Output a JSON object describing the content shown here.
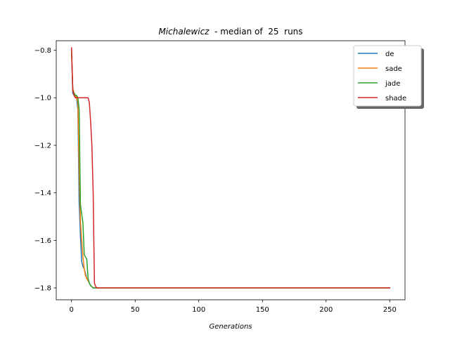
{
  "chart_data": {
    "type": "line",
    "title_italic": "Michalewicz",
    "title_rest": "  - median of  25  runs",
    "xlabel": "Generations",
    "ylabel": "",
    "xlim": [
      -12,
      262
    ],
    "ylim": [
      -1.85,
      -0.76
    ],
    "xticks": [
      0,
      50,
      100,
      150,
      200,
      250
    ],
    "yticks": [
      -0.8,
      -1.0,
      -1.2,
      -1.4,
      -1.6,
      -1.8
    ],
    "ytick_labels": [
      "−0.8",
      "−1.0",
      "−1.2",
      "−1.4",
      "−1.6",
      "−1.8"
    ],
    "legend_position": "top-right",
    "grid": false,
    "series": [
      {
        "name": "de",
        "color": "#1f77b4",
        "points": [
          [
            0,
            -0.8
          ],
          [
            1,
            -0.98
          ],
          [
            2,
            -0.99
          ],
          [
            3,
            -0.99
          ],
          [
            4,
            -1.0
          ],
          [
            5,
            -1.05
          ],
          [
            6,
            -1.44
          ],
          [
            7,
            -1.58
          ],
          [
            8,
            -1.69
          ],
          [
            9,
            -1.71
          ],
          [
            10,
            -1.72
          ],
          [
            11,
            -1.74
          ],
          [
            12,
            -1.76
          ],
          [
            13,
            -1.77
          ],
          [
            14,
            -1.78
          ],
          [
            15,
            -1.79
          ],
          [
            16,
            -1.795
          ],
          [
            17,
            -1.8
          ],
          [
            20,
            -1.8
          ],
          [
            30,
            -1.8
          ],
          [
            250,
            -1.8
          ]
        ]
      },
      {
        "name": "sade",
        "color": "#ff7f0e",
        "points": [
          [
            0,
            -0.8
          ],
          [
            1,
            -0.96
          ],
          [
            2,
            -0.98
          ],
          [
            3,
            -0.99
          ],
          [
            4,
            -1.0
          ],
          [
            5,
            -1.02
          ],
          [
            6,
            -1.3
          ],
          [
            7,
            -1.52
          ],
          [
            8,
            -1.6
          ],
          [
            9,
            -1.67
          ],
          [
            10,
            -1.72
          ],
          [
            11,
            -1.75
          ],
          [
            12,
            -1.76
          ],
          [
            13,
            -1.77
          ],
          [
            14,
            -1.78
          ],
          [
            15,
            -1.79
          ],
          [
            16,
            -1.795
          ],
          [
            17,
            -1.8
          ],
          [
            20,
            -1.8
          ],
          [
            30,
            -1.8
          ],
          [
            250,
            -1.8
          ]
        ]
      },
      {
        "name": "jade",
        "color": "#2ca02c",
        "points": [
          [
            0,
            -0.8
          ],
          [
            1,
            -0.97
          ],
          [
            2,
            -0.98
          ],
          [
            3,
            -0.99
          ],
          [
            4,
            -0.99
          ],
          [
            5,
            -1.0
          ],
          [
            6,
            -1.05
          ],
          [
            7,
            -1.45
          ],
          [
            8,
            -1.49
          ],
          [
            9,
            -1.53
          ],
          [
            10,
            -1.66
          ],
          [
            11,
            -1.67
          ],
          [
            12,
            -1.68
          ],
          [
            13,
            -1.76
          ],
          [
            14,
            -1.78
          ],
          [
            15,
            -1.79
          ],
          [
            16,
            -1.795
          ],
          [
            17,
            -1.8
          ],
          [
            20,
            -1.8
          ],
          [
            30,
            -1.8
          ],
          [
            250,
            -1.8
          ]
        ]
      },
      {
        "name": "shade",
        "color": "#d62728",
        "points": [
          [
            0,
            -0.79
          ],
          [
            1,
            -0.97
          ],
          [
            2,
            -0.99
          ],
          [
            3,
            -1.0
          ],
          [
            5,
            -1.0
          ],
          [
            8,
            -1.0
          ],
          [
            10,
            -1.0
          ],
          [
            12,
            -1.0
          ],
          [
            13,
            -1.0
          ],
          [
            14,
            -1.02
          ],
          [
            15,
            -1.1
          ],
          [
            16,
            -1.2
          ],
          [
            17,
            -1.4
          ],
          [
            18,
            -1.78
          ],
          [
            19,
            -1.795
          ],
          [
            20,
            -1.8
          ],
          [
            25,
            -1.8
          ],
          [
            30,
            -1.8
          ],
          [
            250,
            -1.8
          ]
        ]
      }
    ]
  }
}
